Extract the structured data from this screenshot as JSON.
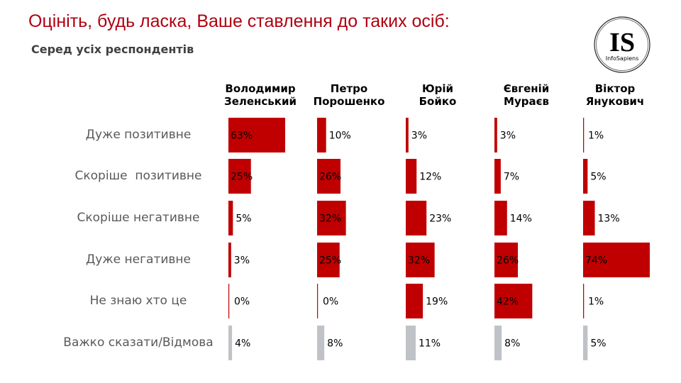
{
  "title": "Оцініть, будь ласка, Ваше ставлення до таких осіб:",
  "subtitle": "Серед усіх респондентів",
  "logo": {
    "text": "IS",
    "subtext": "InfoSapiens"
  },
  "colors": {
    "bar": "#c00000",
    "bar_unknown": "#bfc3c7",
    "title": "#b00010"
  },
  "chart_data": {
    "type": "bar",
    "orientation": "horizontal",
    "categories": [
      "Дуже позитивне",
      "Скоріше  позитивне",
      "Скоріше негативне",
      "Дуже негативне",
      "Не знаю хто це",
      "Важко сказати/Відмова"
    ],
    "series": [
      {
        "name": "Володимир Зеленський",
        "values": [
          63,
          25,
          5,
          3,
          0,
          4
        ]
      },
      {
        "name": "Петро Порошенко",
        "values": [
          10,
          26,
          32,
          25,
          0,
          8
        ]
      },
      {
        "name": "Юрій Бойко",
        "values": [
          3,
          12,
          23,
          32,
          19,
          11
        ]
      },
      {
        "name": "Євгеній Мураєв",
        "values": [
          3,
          7,
          14,
          26,
          42,
          8
        ]
      },
      {
        "name": "Віктор Янукович",
        "values": [
          1,
          5,
          13,
          74,
          1,
          5
        ]
      }
    ],
    "unit": "%",
    "grid": false
  }
}
